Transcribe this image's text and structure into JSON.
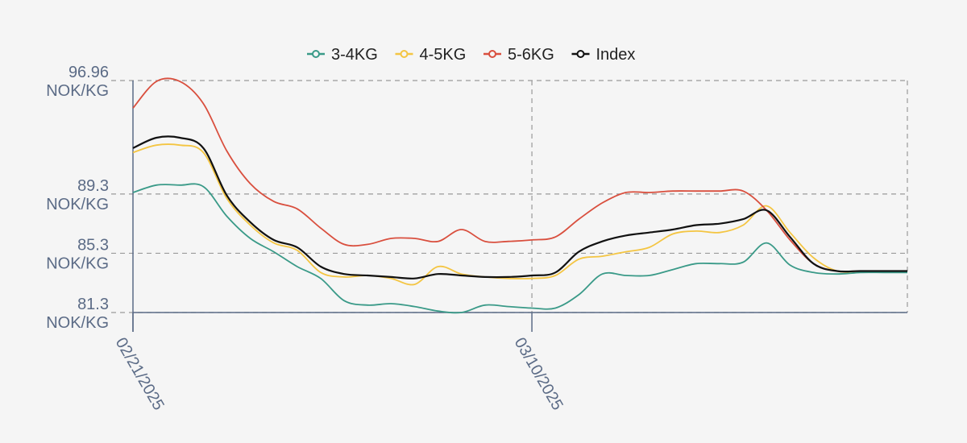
{
  "chart_data": {
    "type": "line",
    "title": "",
    "xlabel": "",
    "ylabel": "",
    "unit": "NOK/KG",
    "x": [
      "02/21/2025",
      "02/22/2025",
      "02/23/2025",
      "02/24/2025",
      "02/25/2025",
      "02/26/2025",
      "02/27/2025",
      "02/28/2025",
      "03/01/2025",
      "03/02/2025",
      "03/03/2025",
      "03/04/2025",
      "03/05/2025",
      "03/06/2025",
      "03/07/2025",
      "03/08/2025",
      "03/09/2025",
      "03/10/2025",
      "03/11/2025",
      "03/12/2025",
      "03/13/2025",
      "03/14/2025",
      "03/15/2025",
      "03/16/2025",
      "03/17/2025",
      "03/18/2025",
      "03/19/2025",
      "03/20/2025",
      "03/21/2025",
      "03/22/2025",
      "03/23/2025",
      "03/24/2025",
      "03/25/2025",
      "03/26/2025"
    ],
    "x_ticks": [
      "02/21/2025",
      "03/10/2025"
    ],
    "y_ticks": [
      81.3,
      85.3,
      89.3,
      96.96
    ],
    "y_tick_labels": [
      "81.3",
      "85.3",
      "89.3",
      "96.96"
    ],
    "ylim": [
      81.3,
      96.96
    ],
    "grid": true,
    "legend_position": "top",
    "series": [
      {
        "name": "3-4KG",
        "color": "#3a9a88",
        "values": [
          89.4,
          89.9,
          89.9,
          89.8,
          87.8,
          86.3,
          85.4,
          84.4,
          83.6,
          82.1,
          81.8,
          81.9,
          81.7,
          81.4,
          81.3,
          81.8,
          81.7,
          81.6,
          81.6,
          82.5,
          83.9,
          83.8,
          83.8,
          84.2,
          84.6,
          84.6,
          84.7,
          86.0,
          84.5,
          84.0,
          83.9,
          84.0,
          84.0,
          84.0
        ]
      },
      {
        "name": "4-5KG",
        "color": "#f4c542",
        "values": [
          92.1,
          92.6,
          92.6,
          92.1,
          89.0,
          87.2,
          86.0,
          85.5,
          84.0,
          83.7,
          83.8,
          83.6,
          83.2,
          84.4,
          83.9,
          83.7,
          83.6,
          83.6,
          83.8,
          84.9,
          85.1,
          85.4,
          85.7,
          86.6,
          86.8,
          86.7,
          87.2,
          88.5,
          86.7,
          85.0,
          84.1,
          84.1,
          84.1,
          84.1
        ]
      },
      {
        "name": "5-6KG",
        "color": "#d94f3e",
        "values": [
          95.1,
          96.9,
          96.9,
          95.4,
          92.2,
          90.0,
          88.8,
          88.3,
          87.0,
          85.9,
          85.9,
          86.3,
          86.3,
          86.1,
          86.9,
          86.1,
          86.1,
          86.2,
          86.4,
          87.6,
          88.7,
          89.4,
          89.4,
          89.5,
          89.5,
          89.5,
          89.5,
          88.2,
          86.2,
          84.6,
          84.1,
          84.1,
          84.1,
          84.1
        ]
      },
      {
        "name": "Index",
        "color": "#111111",
        "values": [
          92.4,
          93.1,
          93.1,
          92.4,
          89.2,
          87.4,
          86.2,
          85.7,
          84.4,
          83.9,
          83.8,
          83.7,
          83.6,
          83.9,
          83.8,
          83.7,
          83.7,
          83.8,
          84.0,
          85.4,
          86.1,
          86.5,
          86.7,
          86.9,
          87.2,
          87.3,
          87.6,
          88.2,
          86.4,
          84.6,
          84.1,
          84.1,
          84.1,
          84.1
        ]
      }
    ]
  }
}
